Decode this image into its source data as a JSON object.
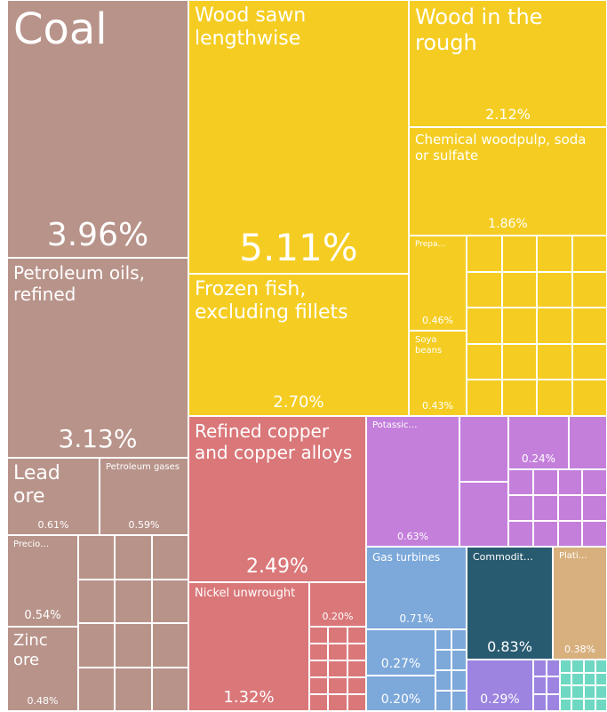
{
  "chart_data": {
    "type": "treemap",
    "categories": [
      "Coal",
      "Petroleum oils, refined",
      "Lead ore",
      "Petroleum gases",
      "Precio…",
      "Zinc ore",
      "Wood sawn lengthwise",
      "Frozen fish, excluding fillets",
      "Wood in the rough",
      "Chemical woodpulp, soda or sulfate",
      "Prepa…",
      "Soya beans",
      "Refined copper and copper alloys",
      "Nickel unwrought",
      null,
      "Potassic…",
      null,
      "Gas turbines",
      null,
      null,
      "Commodit…",
      "Plati…",
      null
    ],
    "values": [
      3.96,
      3.13,
      0.61,
      0.59,
      0.54,
      0.48,
      5.11,
      2.7,
      2.12,
      1.86,
      0.46,
      0.43,
      2.49,
      1.32,
      0.2,
      0.63,
      0.24,
      0.71,
      0.27,
      0.2,
      0.83,
      0.38,
      0.29
    ],
    "value_labels": [
      "3.96%",
      "3.13%",
      "0.61%",
      "0.59%",
      "0.54%",
      "0.48%",
      "5.11%",
      "2.70%",
      "2.12%",
      "1.86%",
      "0.46%",
      "0.43%",
      "2.49%",
      "1.32%",
      "0.20%",
      "0.63%",
      "0.24%",
      "0.71%",
      "0.27%",
      "0.20%",
      "0.83%",
      "0.38%",
      "0.29%"
    ],
    "colors": [
      "#b8938a",
      "#b8938a",
      "#b8938a",
      "#b8938a",
      "#b8938a",
      "#b8938a",
      "#f5cd22",
      "#f5cd22",
      "#f5cd22",
      "#f5cd22",
      "#f5cd22",
      "#f5cd22",
      "#da7779",
      "#da7779",
      "#da7779",
      "#c47fdb",
      "#c47fdb",
      "#7ca8da",
      "#7ca8da",
      "#7ca8da",
      "#285a70",
      "#d7b07d",
      "#9c84e0"
    ]
  }
}
